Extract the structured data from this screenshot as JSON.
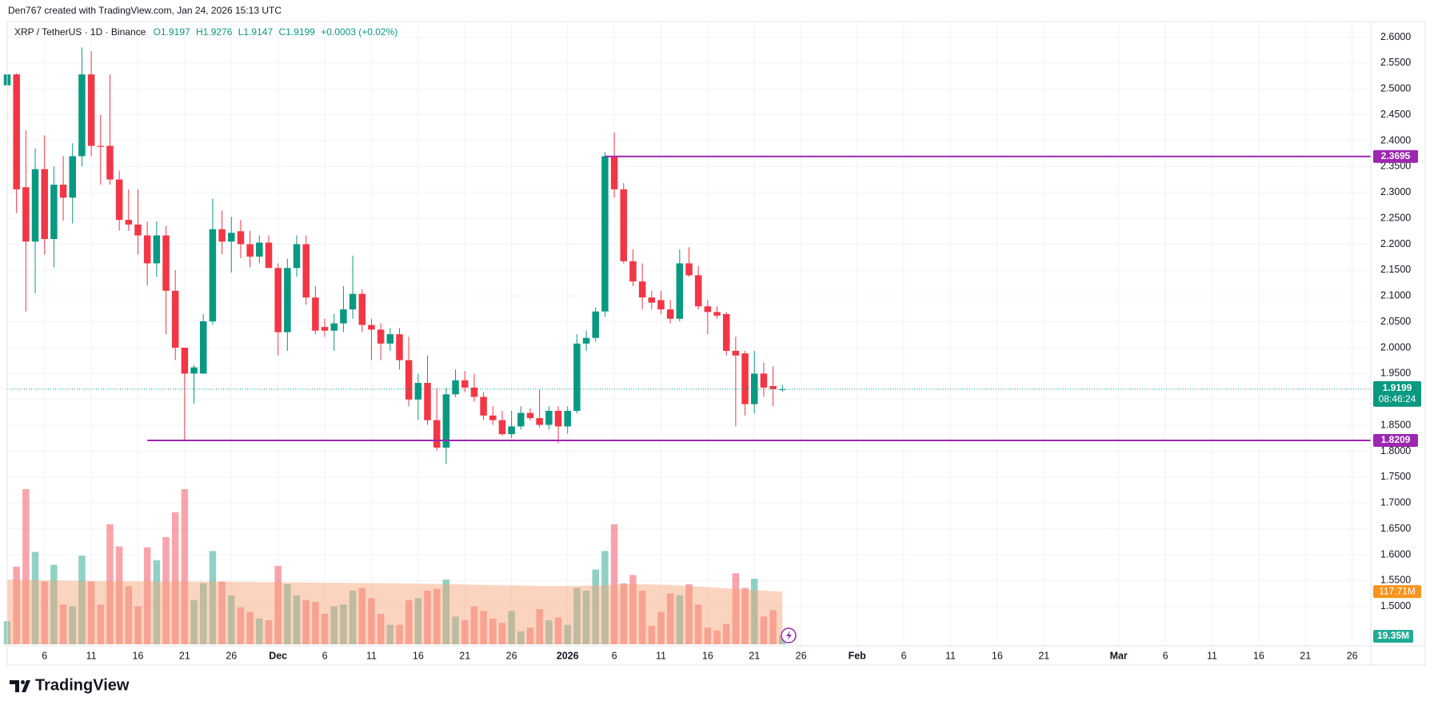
{
  "header": {
    "attribution": "Den767 created with TradingView.com, Jan 24, 2026 15:13 UTC"
  },
  "brand": "TradingView",
  "chart_data": {
    "type": "candlestick",
    "symbol": "XRP / TetherUS · 1D · Binance",
    "ohlc_labels": [
      "O1.9197",
      "H1.9276",
      "L1.9147",
      "C1.9199"
    ],
    "change_label": "+0.0003 (+0.02%)",
    "x": [
      "2025-11-02",
      "2025-11-03",
      "2025-11-04",
      "2025-11-05",
      "2025-11-06",
      "2025-11-07",
      "2025-11-08",
      "2025-11-09",
      "2025-11-10",
      "2025-11-11",
      "2025-11-12",
      "2025-11-13",
      "2025-11-14",
      "2025-11-15",
      "2025-11-16",
      "2025-11-17",
      "2025-11-18",
      "2025-11-19",
      "2025-11-20",
      "2025-11-21",
      "2025-11-22",
      "2025-11-23",
      "2025-11-24",
      "2025-11-25",
      "2025-11-26",
      "2025-11-27",
      "2025-11-28",
      "2025-11-29",
      "2025-11-30",
      "2025-12-01",
      "2025-12-02",
      "2025-12-03",
      "2025-12-04",
      "2025-12-05",
      "2025-12-06",
      "2025-12-07",
      "2025-12-08",
      "2025-12-09",
      "2025-12-10",
      "2025-12-11",
      "2025-12-12",
      "2025-12-13",
      "2025-12-14",
      "2025-12-15",
      "2025-12-16",
      "2025-12-17",
      "2025-12-18",
      "2025-12-19",
      "2025-12-20",
      "2025-12-21",
      "2025-12-22",
      "2025-12-23",
      "2025-12-24",
      "2025-12-25",
      "2025-12-26",
      "2025-12-27",
      "2025-12-28",
      "2025-12-29",
      "2025-12-30",
      "2025-12-31",
      "2026-01-01",
      "2026-01-02",
      "2026-01-03",
      "2026-01-04",
      "2026-01-05",
      "2026-01-06",
      "2026-01-07",
      "2026-01-08",
      "2026-01-09",
      "2026-01-10",
      "2026-01-11",
      "2026-01-12",
      "2026-01-13",
      "2026-01-14",
      "2026-01-15",
      "2026-01-16",
      "2026-01-17",
      "2026-01-18",
      "2026-01-19",
      "2026-01-20",
      "2026-01-21",
      "2026-01-22",
      "2026-01-23",
      "2026-01-24"
    ],
    "open": [
      2.507,
      2.528,
      2.31,
      2.205,
      2.345,
      2.21,
      2.315,
      2.29,
      2.37,
      2.528,
      2.39,
      2.39,
      2.325,
      2.247,
      2.238,
      2.217,
      2.163,
      2.217,
      2.11,
      2.0,
      1.95,
      1.95,
      2.051,
      2.229,
      2.205,
      2.225,
      2.2,
      2.176,
      2.203,
      2.154,
      2.03,
      2.154,
      2.2,
      2.097,
      2.04,
      2.033,
      2.047,
      2.074,
      2.104,
      2.044,
      2.035,
      2.008,
      2.026,
      1.976,
      1.9,
      1.932,
      1.86,
      1.807,
      1.91,
      1.937,
      1.923,
      1.905,
      1.869,
      1.86,
      1.833,
      1.848,
      1.874,
      1.864,
      1.851,
      1.878,
      1.848,
      1.878,
      2.008,
      2.019,
      2.07,
      2.37,
      2.306,
      2.167,
      2.128,
      2.097,
      2.092,
      2.074,
      2.056,
      2.163,
      2.14,
      2.08,
      2.069,
      2.065,
      1.994,
      1.989,
      1.891,
      1.95,
      1.926,
      1.9197
    ],
    "high": [
      2.555,
      2.53,
      2.42,
      2.385,
      2.41,
      2.35,
      2.37,
      2.395,
      2.58,
      2.573,
      2.45,
      2.528,
      2.342,
      2.306,
      2.306,
      2.244,
      2.244,
      2.235,
      2.15,
      2.0,
      1.967,
      2.065,
      2.288,
      2.265,
      2.253,
      2.247,
      2.226,
      2.217,
      2.217,
      2.163,
      2.172,
      2.217,
      2.217,
      2.119,
      2.056,
      2.065,
      2.119,
      2.178,
      2.113,
      2.056,
      2.047,
      2.038,
      2.038,
      2.021,
      1.95,
      1.985,
      1.922,
      1.922,
      1.958,
      1.955,
      1.95,
      1.914,
      1.887,
      1.878,
      1.878,
      1.887,
      1.883,
      1.919,
      1.887,
      1.887,
      1.887,
      2.026,
      2.033,
      2.078,
      2.378,
      2.416,
      2.318,
      2.19,
      2.163,
      2.11,
      2.11,
      2.092,
      2.19,
      2.194,
      2.158,
      2.092,
      2.08,
      2.069,
      2.021,
      1.994,
      1.994,
      1.971,
      1.964,
      1.9276
    ],
    "low": [
      2.49,
      2.26,
      2.07,
      2.105,
      2.18,
      2.155,
      2.245,
      2.24,
      2.35,
      2.37,
      2.315,
      2.315,
      2.226,
      2.226,
      2.18,
      2.12,
      2.137,
      2.026,
      1.976,
      1.821,
      1.892,
      1.95,
      2.044,
      2.18,
      2.145,
      2.173,
      2.155,
      2.163,
      2.154,
      1.985,
      1.994,
      2.137,
      2.083,
      2.026,
      2.021,
      1.994,
      2.03,
      2.056,
      2.03,
      1.976,
      1.976,
      1.994,
      1.958,
      1.887,
      1.86,
      1.851,
      1.801,
      1.775,
      1.905,
      1.914,
      1.896,
      1.86,
      1.851,
      1.83,
      1.825,
      1.842,
      1.86,
      1.846,
      1.842,
      1.816,
      1.834,
      1.873,
      1.994,
      2.012,
      2.06,
      2.29,
      2.163,
      2.119,
      2.074,
      2.074,
      2.065,
      2.047,
      2.051,
      2.137,
      2.074,
      2.026,
      2.056,
      1.985,
      1.848,
      1.869,
      1.873,
      1.905,
      1.887,
      1.9147
    ],
    "close": [
      2.528,
      2.306,
      2.205,
      2.345,
      2.21,
      2.315,
      2.29,
      2.37,
      2.528,
      2.39,
      2.388,
      2.325,
      2.247,
      2.238,
      2.217,
      2.163,
      2.217,
      2.11,
      2.0,
      1.95,
      1.962,
      2.051,
      2.229,
      2.205,
      2.222,
      2.2,
      2.176,
      2.203,
      2.154,
      2.03,
      2.154,
      2.2,
      2.097,
      2.033,
      2.033,
      2.047,
      2.074,
      2.104,
      2.044,
      2.035,
      2.008,
      2.026,
      1.976,
      1.9,
      1.932,
      1.86,
      1.807,
      1.91,
      1.937,
      1.923,
      1.905,
      1.869,
      1.86,
      1.833,
      1.848,
      1.874,
      1.864,
      1.851,
      1.878,
      1.848,
      1.878,
      2.008,
      2.019,
      2.07,
      2.37,
      2.306,
      2.167,
      2.128,
      2.097,
      2.087,
      2.074,
      2.056,
      2.163,
      2.14,
      2.08,
      2.069,
      2.062,
      1.994,
      1.985,
      1.891,
      1.95,
      1.923,
      1.92,
      1.9199
    ],
    "volume": [
      51.6,
      173.5,
      346.9,
      206.5,
      140.4,
      177.6,
      88.8,
      84.7,
      198.2,
      140.4,
      88.8,
      268.5,
      218.9,
      130.1,
      84.7,
      216.8,
      187.9,
      239.5,
      295.3,
      346.9,
      99.1,
      136.3,
      208.6,
      140.4,
      109.4,
      82.6,
      72.3,
      57.8,
      53.7,
      175.5,
      134.2,
      109.4,
      99.1,
      95.0,
      68.1,
      84.7,
      88.8,
      119.8,
      126.0,
      103.2,
      68.1,
      43.4,
      43.4,
      99.1,
      103.2,
      119.8,
      123.9,
      144.6,
      62.0,
      53.7,
      84.7,
      74.3,
      57.8,
      47.5,
      74.3,
      28.9,
      37.2,
      78.5,
      53.7,
      59.9,
      43.4,
      126.0,
      119.8,
      167.3,
      208.6,
      268.5,
      136.3,
      154.9,
      119.8,
      41.3,
      72.3,
      113.6,
      109.4,
      134.2,
      88.8,
      37.2,
      31.0,
      45.4,
      159.0,
      126.0,
      146.6,
      62.0,
      76.4,
      19.35
    ],
    "volume_ma": [
      144.6,
      144.2,
      143.8,
      143.5,
      143.1,
      142.8,
      142.5,
      142.2,
      141.9,
      141.6,
      141.3,
      141.1,
      140.9,
      140.8,
      140.7,
      140.6,
      140.5,
      140.5,
      140.4,
      140.4,
      140.3,
      140.2,
      140.1,
      140.0,
      139.8,
      139.6,
      139.4,
      139.2,
      139.0,
      138.8,
      138.6,
      138.4,
      138.2,
      138.0,
      137.8,
      137.6,
      137.4,
      137.2,
      137.0,
      136.8,
      136.6,
      136.4,
      136.2,
      136.0,
      135.6,
      135.2,
      134.8,
      134.4,
      134.0,
      133.6,
      133.2,
      132.8,
      132.4,
      132.0,
      131.6,
      131.2,
      130.8,
      130.5,
      130.3,
      130.1,
      130.1,
      130.6,
      131.2,
      131.8,
      132.5,
      133.2,
      133.8,
      134.2,
      134.2,
      134.0,
      133.3,
      132.5,
      131.5,
      130.4,
      129.2,
      127.9,
      126.5,
      125.0,
      123.9,
      122.5,
      121.2,
      120.0,
      118.8,
      117.71
    ],
    "volume_ma_label": "117.71M",
    "volume_label": "19.35M",
    "last_price_countdown": "08:46:24",
    "up_color": "#089981",
    "down_color": "#f23645",
    "volume_ma_color": "#f7a072",
    "levels": [
      {
        "value": 2.3695,
        "start": "2026-01-05",
        "color": "#9c27b0"
      },
      {
        "value": 1.8209,
        "start": "2025-11-17",
        "color": "#9c27b0"
      }
    ],
    "xlim": [
      "2025-11-02",
      "2026-03-28"
    ],
    "xticks": [
      {
        "value": "2025-11-06",
        "label": "6"
      },
      {
        "value": "2025-11-11",
        "label": "11"
      },
      {
        "value": "2025-11-16",
        "label": "16"
      },
      {
        "value": "2025-11-21",
        "label": "21"
      },
      {
        "value": "2025-11-26",
        "label": "26"
      },
      {
        "value": "2025-12-01",
        "label": "Dec"
      },
      {
        "value": "2025-12-06",
        "label": "6"
      },
      {
        "value": "2025-12-11",
        "label": "11"
      },
      {
        "value": "2025-12-16",
        "label": "16"
      },
      {
        "value": "2025-12-21",
        "label": "21"
      },
      {
        "value": "2025-12-26",
        "label": "26"
      },
      {
        "value": "2026-01-01",
        "label": "2026"
      },
      {
        "value": "2026-01-06",
        "label": "6"
      },
      {
        "value": "2026-01-11",
        "label": "11"
      },
      {
        "value": "2026-01-16",
        "label": "16"
      },
      {
        "value": "2026-01-21",
        "label": "21"
      },
      {
        "value": "2026-01-26",
        "label": "26"
      },
      {
        "value": "2026-02-01",
        "label": "Feb"
      },
      {
        "value": "2026-02-06",
        "label": "6"
      },
      {
        "value": "2026-02-11",
        "label": "11"
      },
      {
        "value": "2026-02-16",
        "label": "16"
      },
      {
        "value": "2026-02-21",
        "label": "21"
      },
      {
        "value": "2026-03-01",
        "label": "Mar"
      },
      {
        "value": "2026-03-06",
        "label": "6"
      },
      {
        "value": "2026-03-11",
        "label": "11"
      },
      {
        "value": "2026-03-16",
        "label": "16"
      },
      {
        "value": "2026-03-21",
        "label": "21"
      },
      {
        "value": "2026-03-26",
        "label": "26"
      }
    ],
    "ylim": [
      1.424,
      2.627
    ],
    "yticks": [
      {
        "value": 1.5,
        "label": "1.5000"
      },
      {
        "value": 1.55,
        "label": "1.5500"
      },
      {
        "value": 1.6,
        "label": "1.6000"
      },
      {
        "value": 1.65,
        "label": "1.6500"
      },
      {
        "value": 1.7,
        "label": "1.7000"
      },
      {
        "value": 1.75,
        "label": "1.7500"
      },
      {
        "value": 1.8,
        "label": "1.8000"
      },
      {
        "value": 1.85,
        "label": "1.8500"
      },
      {
        "value": 1.9,
        "label": "1.9000"
      },
      {
        "value": 1.95,
        "label": "1.9500"
      },
      {
        "value": 2.0,
        "label": "2.0000"
      },
      {
        "value": 2.05,
        "label": "2.0500"
      },
      {
        "value": 2.1,
        "label": "2.1000"
      },
      {
        "value": 2.15,
        "label": "2.1500"
      },
      {
        "value": 2.2,
        "label": "2.2000"
      },
      {
        "value": 2.25,
        "label": "2.2500"
      },
      {
        "value": 2.3,
        "label": "2.3000"
      },
      {
        "value": 2.35,
        "label": "2.3500"
      },
      {
        "value": 2.4,
        "label": "2.4000"
      },
      {
        "value": 2.45,
        "label": "2.4500"
      },
      {
        "value": 2.5,
        "label": "2.5000"
      },
      {
        "value": 2.55,
        "label": "2.5500"
      },
      {
        "value": 2.6,
        "label": "2.6000"
      }
    ],
    "grid": true
  }
}
